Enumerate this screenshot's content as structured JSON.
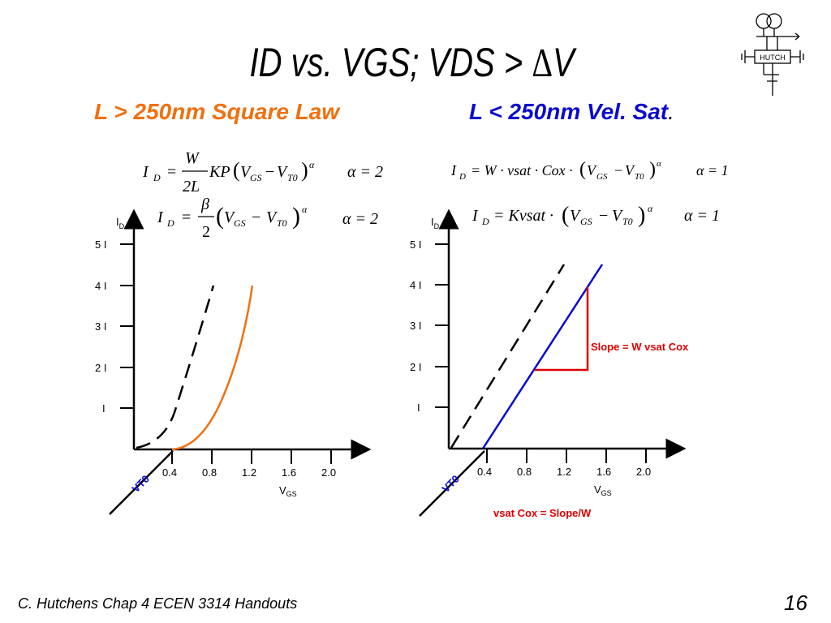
{
  "title": {
    "main": "ID vs. VGS;  VDS > ",
    "delta": "Δ",
    "v": "V"
  },
  "subtitles": {
    "left": "L > 250nm Square Law",
    "right_main": "L < 250nm Vel. Sat",
    "right_dot": "."
  },
  "equations": {
    "left1": {
      "lhs": "I",
      "lhs_sub": "D",
      "eq": "=",
      "num": "W",
      "den": "2L",
      "kp": "KP",
      "paren_l": "(",
      "v1": "V",
      "v1_sub": "GS",
      "minus": "−",
      "v2": "V",
      "v2_sub": "T0",
      "paren_r": ")",
      "exp": "α",
      "alpha_eq": "α = 2"
    },
    "left2": {
      "lhs": "I",
      "lhs_sub": "D",
      "eq": "=",
      "num": "β",
      "den": "2",
      "paren_l": "(",
      "v1": "V",
      "v1_sub": "GS",
      "minus": "−",
      "v2": "V",
      "v2_sub": "T0",
      "paren_r": ")",
      "exp": "α",
      "alpha_eq": "α = 2"
    },
    "right1": {
      "lhs": "I",
      "lhs_sub": "D",
      "rhs": "= W · vsat · Cox ·",
      "paren_l": "(",
      "v1": "V",
      "v1_sub": "GS",
      "minus": "−",
      "v2": "V",
      "v2_sub": "T0",
      "paren_r": ")",
      "exp": "α",
      "alpha_eq": "α = 1"
    },
    "right2": {
      "lhs": "I",
      "lhs_sub": "D",
      "rhs": "= Kvsat ·",
      "paren_l": "(",
      "v1": "V",
      "v1_sub": "GS",
      "minus": "−",
      "v2": "V",
      "v2_sub": "T0",
      "paren_r": ")",
      "exp": "α",
      "alpha_eq": "α = 1"
    }
  },
  "plots": {
    "y_axis_label": "I",
    "y_axis_sub": "D",
    "x_axis_label": "V",
    "x_axis_sub": "GS",
    "y_ticks": [
      "5 I",
      "4 I",
      "3 I",
      "2 I",
      "I"
    ],
    "x_ticks": [
      "0.4",
      "0.8",
      "1.2",
      "1.6",
      "2.0"
    ],
    "vt0_label": "VT0"
  },
  "annotations": {
    "slope": "Slope = W vsat Cox",
    "vsat": "vsat Cox = Slope/W"
  },
  "logo": {
    "text": "HUTCH"
  },
  "footer": "C. Hutchens Chap 4 ECEN 3314 Handouts",
  "page_number": "16",
  "colors": {
    "orange": "#f07010",
    "blue": "#0a0ad0",
    "red": "#e00000",
    "black": "#000000"
  }
}
